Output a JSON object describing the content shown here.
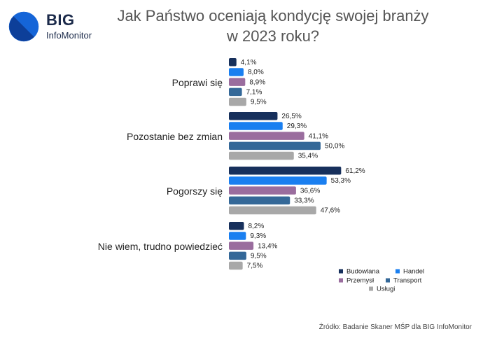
{
  "logo": {
    "big": "BIG",
    "sub": "InfoMonitor"
  },
  "title_lines": [
    "Jak Państwo oceniają kondycję swojej branży",
    "w 2023 roku?"
  ],
  "source": "Źródło: Badanie Skaner MŚP dla BIG InfoMonitor",
  "chart_data": {
    "type": "bar",
    "orientation": "horizontal",
    "title": "Jak Państwo oceniają kondycję swojej branży w 2023 roku?",
    "categories": [
      "Poprawi się",
      "Pozostanie bez zmian",
      "Pogorszy się",
      "Nie wiem, trudno powiedzieć"
    ],
    "series": [
      {
        "name": "Budowlana",
        "color": "#17305c",
        "values": [
          4.1,
          26.5,
          61.2,
          8.2
        ],
        "labels": [
          "4,1%",
          "26,5%",
          "61,2%",
          "8,2%"
        ]
      },
      {
        "name": "Handel",
        "color": "#1a7ff0",
        "values": [
          8.0,
          29.3,
          53.3,
          9.3
        ],
        "labels": [
          "8,0%",
          "29,3%",
          "53,3%",
          "9,3%"
        ]
      },
      {
        "name": "Przemysł",
        "color": "#9a6d9e",
        "values": [
          8.9,
          41.1,
          36.6,
          13.4
        ],
        "labels": [
          "8,9%",
          "41,1%",
          "36,6%",
          "13,4%"
        ]
      },
      {
        "name": "Transport",
        "color": "#346898",
        "values": [
          7.1,
          50.0,
          33.3,
          9.5
        ],
        "labels": [
          "7,1%",
          "50,0%",
          "33,3%",
          "9,5%"
        ]
      },
      {
        "name": "Usługi",
        "color": "#a8a8a8",
        "values": [
          9.5,
          35.4,
          47.6,
          7.5
        ],
        "labels": [
          "9,5%",
          "35,4%",
          "47,6%",
          "7,5%"
        ]
      }
    ],
    "legend_position": "bottom-right",
    "grid": false
  }
}
